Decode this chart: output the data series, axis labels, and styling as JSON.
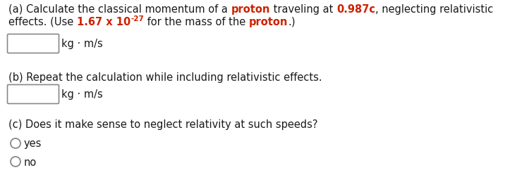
{
  "bg_color": "#ffffff",
  "text_color": "#1a1a1a",
  "red_color": "#cc2200",
  "font_size": 10.5,
  "sup_font_size": 7.5,
  "box_edge_color": "#888888",
  "line_a1_segments": [
    [
      "(a) Calculate the classical momentum of a ",
      "#1a1a1a",
      false
    ],
    [
      "proton",
      "#cc2200",
      true
    ],
    [
      " traveling at ",
      "#1a1a1a",
      false
    ],
    [
      "0.987c",
      "#cc2200",
      true
    ],
    [
      ", neglecting relativistic",
      "#1a1a1a",
      false
    ]
  ],
  "line_a2_segments": [
    [
      "effects. (Use ",
      "#1a1a1a",
      false
    ],
    [
      "1.67 x 10",
      "#cc2200",
      true
    ]
  ],
  "line_a2_sup": [
    "-27",
    "#cc2200",
    true
  ],
  "line_a2_end_segments": [
    [
      " for the mass of the ",
      "#1a1a1a",
      false
    ],
    [
      "proton",
      "#cc2200",
      true
    ],
    [
      ".",
      "#1a1a1a",
      false
    ],
    [
      ")",
      "#1a1a1a",
      false
    ]
  ],
  "units": "kg · m/s",
  "line_b1": "(b) Repeat the calculation while including relativistic effects.",
  "line_c1": "(c) Does it make sense to neglect relativity at such speeds?",
  "yes_label": "yes",
  "no_label": "no",
  "figsize": [
    7.5,
    2.79
  ],
  "dpi": 100
}
